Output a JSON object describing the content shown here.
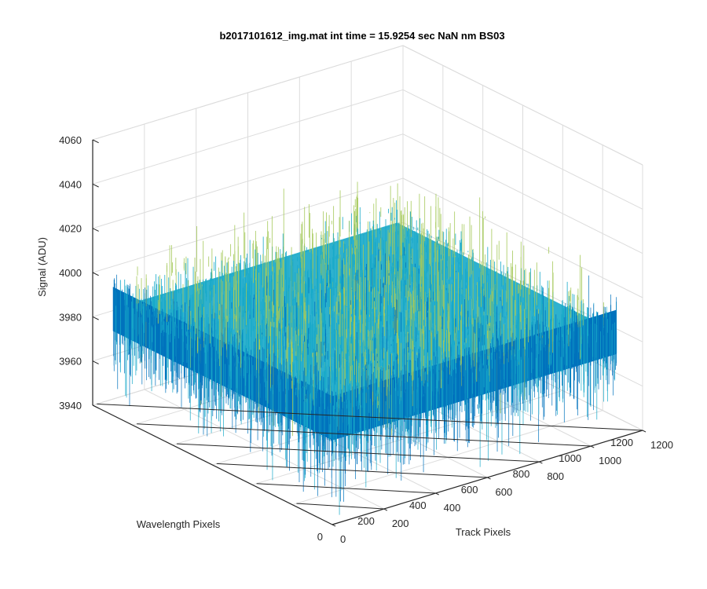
{
  "chart_data": {
    "type": "surface",
    "title": "b2017101612_img.mat int time = 15.9254 sec  NaN nm BS03",
    "xlabel": "Track Pixels",
    "ylabel": "Wavelength Pixels",
    "zlabel": "Signal (ADU)",
    "xlim": [
      0,
      1200
    ],
    "ylim": [
      0,
      1200
    ],
    "zlim": [
      3940,
      4060
    ],
    "x_ticks": [
      0,
      200,
      400,
      600,
      800,
      1000,
      1200
    ],
    "y_ticks": [
      0,
      200,
      400,
      600,
      800,
      1000,
      1200
    ],
    "z_ticks": [
      3940,
      3960,
      3980,
      4000,
      4020,
      4040,
      4060
    ],
    "x_tick_labels": [
      "0",
      "200",
      "400",
      "600",
      "800",
      "1000",
      "1200"
    ],
    "y_tick_labels": [
      "0",
      "200",
      "400",
      "600",
      "800",
      "1000",
      "1200"
    ],
    "z_tick_labels": [
      "3940",
      "3960",
      "3980",
      "4000",
      "4020",
      "4040",
      "4060"
    ],
    "grid": true,
    "colormap": "parula",
    "surface": {
      "x_range": [
        1,
        1100
      ],
      "y_range": [
        1,
        1100
      ],
      "mean_signal": 3988,
      "noise_range": [
        3950,
        4040
      ]
    },
    "colors": {
      "low": "#0072bd",
      "mid": "#17a9c9",
      "high": "#a5c95a",
      "axis": "#262626",
      "grid": "#dcdcdc"
    }
  }
}
